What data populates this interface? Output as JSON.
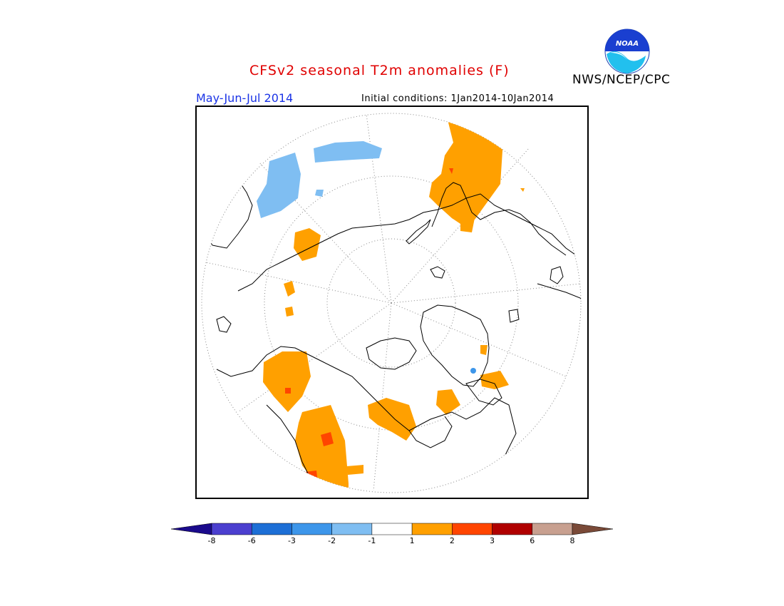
{
  "title": "CFSv2 seasonal T2m anomalies (F)",
  "period": "May-Jun-Jul 2014",
  "initial_conditions": "Initial conditions: 1Jan2014-10Jan2014",
  "agency": "NWS/NCEP/CPC",
  "logo_text": "NOAA",
  "colorbar": {
    "colors": [
      "#1a0a8c",
      "#4b3fcf",
      "#1d6fd6",
      "#3d96ea",
      "#7fbef2",
      "#ffffff",
      "#ffa000",
      "#ff4500",
      "#b00000",
      "#c8a090",
      "#7a4a38"
    ],
    "ticks": [
      "-8",
      "-6",
      "-3",
      "-2",
      "-1",
      "1",
      "2",
      "3",
      "6",
      "8"
    ]
  },
  "colors": {
    "warm_1": "#ffa000",
    "warm_2": "#ff4500",
    "cool_1": "#7fbef2",
    "cool_3": "#1d6fd6",
    "title_red": "#e00000",
    "period_blue": "#1a33e6"
  }
}
